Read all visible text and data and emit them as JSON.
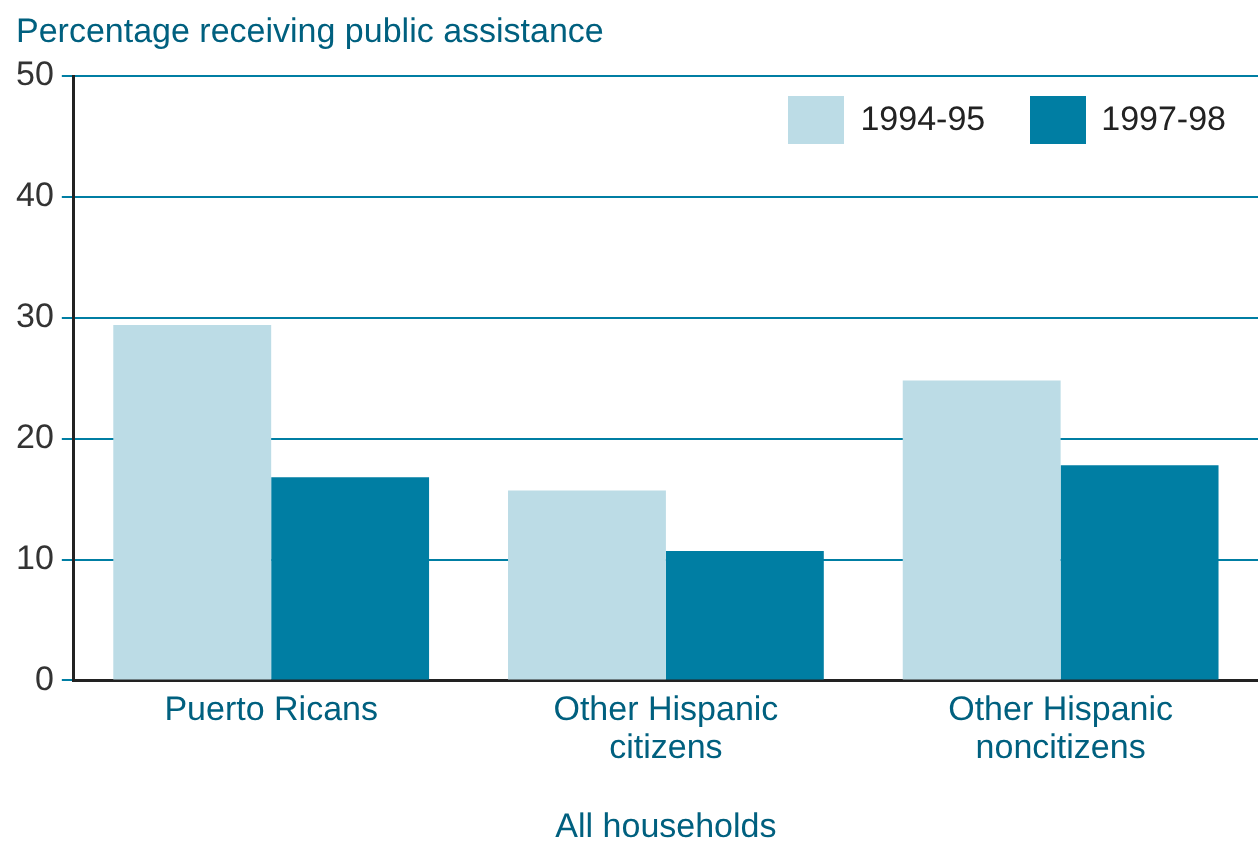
{
  "chart_data": {
    "type": "bar",
    "ylabel": "Percentage receiving public assistance",
    "xlabel": "All households",
    "categories": [
      "Puerto Ricans",
      "Other Hispanic citizens",
      "Other Hispanic noncitizens"
    ],
    "series": [
      {
        "name": "1994-95",
        "color": "#bcdce6",
        "values": [
          29.4,
          15.7,
          24.8
        ]
      },
      {
        "name": "1997-98",
        "color": "#007ea3",
        "values": [
          16.8,
          10.7,
          17.8
        ]
      }
    ],
    "ylim": [
      0,
      50
    ],
    "yticks": [
      0,
      10,
      20,
      30,
      40,
      50
    ],
    "grid": "y",
    "legend": "top right"
  }
}
